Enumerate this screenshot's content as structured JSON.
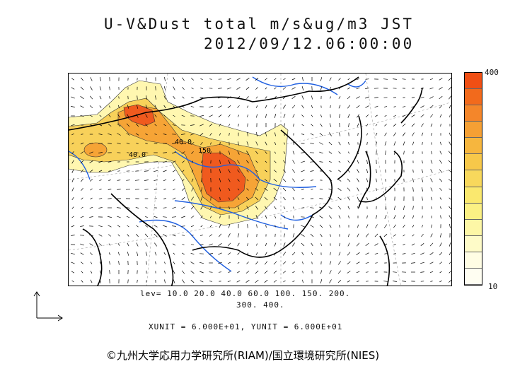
{
  "header": {
    "title": "U-V&Dust total m/s&ug/m3 JST",
    "timestamp": "2012/09/12.06:00:00"
  },
  "map": {
    "contour_labels": [
      "40.0",
      "150",
      "40.0"
    ],
    "dust_color_hot": "#f05a1e",
    "dust_color_mid": "#f7c54a",
    "dust_color_low": "#fff7b0",
    "coastline_color": "#000000",
    "river_color": "#1f5fe0",
    "graticule_color": "#9a9a9a",
    "wind_vector_color": "#000000"
  },
  "legend": {
    "levels_line1": "lev= 10.0 20.0 40.0 60.0 100. 150. 200.",
    "levels_line2": "300. 400.",
    "units_line": "XUNIT = 6.000E+01, YUNIT = 6.000E+01",
    "colorbar_max": "400",
    "colorbar_min": "10",
    "colorbar_colors": [
      "#f04f14",
      "#f26a1c",
      "#f4862a",
      "#f5a034",
      "#f6b63e",
      "#f7c84a",
      "#f8d85c",
      "#fae86e",
      "#fbf084",
      "#fdf7a6",
      "#fefbc8",
      "#fffde4",
      "#fffef2"
    ]
  },
  "footer": {
    "credit": "©九州大学応用力学研究所(RIAM)/国立環境研究所(NIES)"
  }
}
